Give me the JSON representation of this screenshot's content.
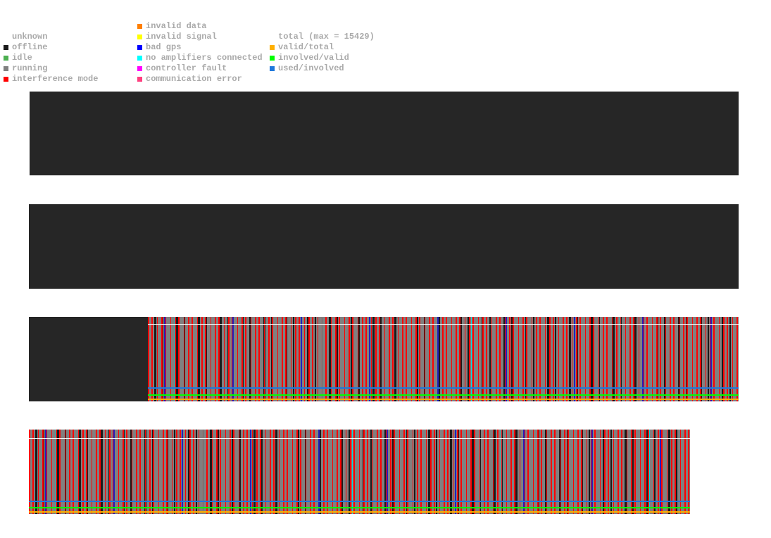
{
  "legend": {
    "columns": [
      {
        "items": [
          {
            "label": "unknown",
            "color": null
          },
          {
            "label": "offline",
            "color": "#1a1a1a"
          },
          {
            "label": "idle",
            "color": "#4caf50"
          },
          {
            "label": "running",
            "color": "#808080"
          },
          {
            "label": "interference mode",
            "color": "#ff0000"
          }
        ]
      },
      {
        "items": [
          {
            "label": "invalid data",
            "color": "#ff7f00"
          },
          {
            "label": "invalid signal",
            "color": "#ffff00"
          },
          {
            "label": "bad gps",
            "color": "#0000ff"
          },
          {
            "label": "no amplifiers connected",
            "color": "#00ffff"
          },
          {
            "label": "controller fault",
            "color": "#ff00ff"
          },
          {
            "label": "communication error",
            "color": "#ff4080"
          }
        ]
      },
      {
        "items": [
          {
            "label": "total (max = 15429)",
            "color": null
          },
          {
            "label": "valid/total",
            "color": "#ffb000"
          },
          {
            "label": "involved/valid",
            "color": "#00ff00"
          },
          {
            "label": "used/involved",
            "color": "#1e78dc"
          }
        ]
      }
    ]
  }
}
